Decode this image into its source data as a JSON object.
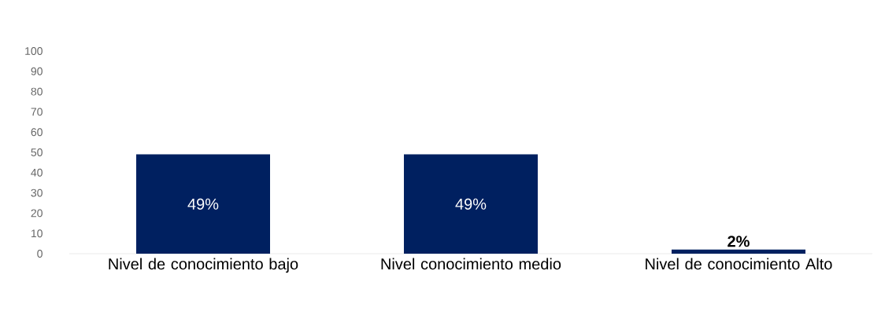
{
  "chart_data": {
    "type": "bar",
    "categories": [
      "Nivel de conocimiento bajo",
      "Nivel conocimiento medio",
      "Nivel de conocimiento Alto"
    ],
    "values": [
      49,
      49,
      2
    ],
    "value_labels": [
      "49%",
      "49%",
      "2%"
    ],
    "color": "#002060",
    "ylim": [
      0,
      100
    ],
    "yticks": [
      0,
      10,
      20,
      30,
      40,
      50,
      60,
      70,
      80,
      90,
      100
    ],
    "grid": false
  }
}
